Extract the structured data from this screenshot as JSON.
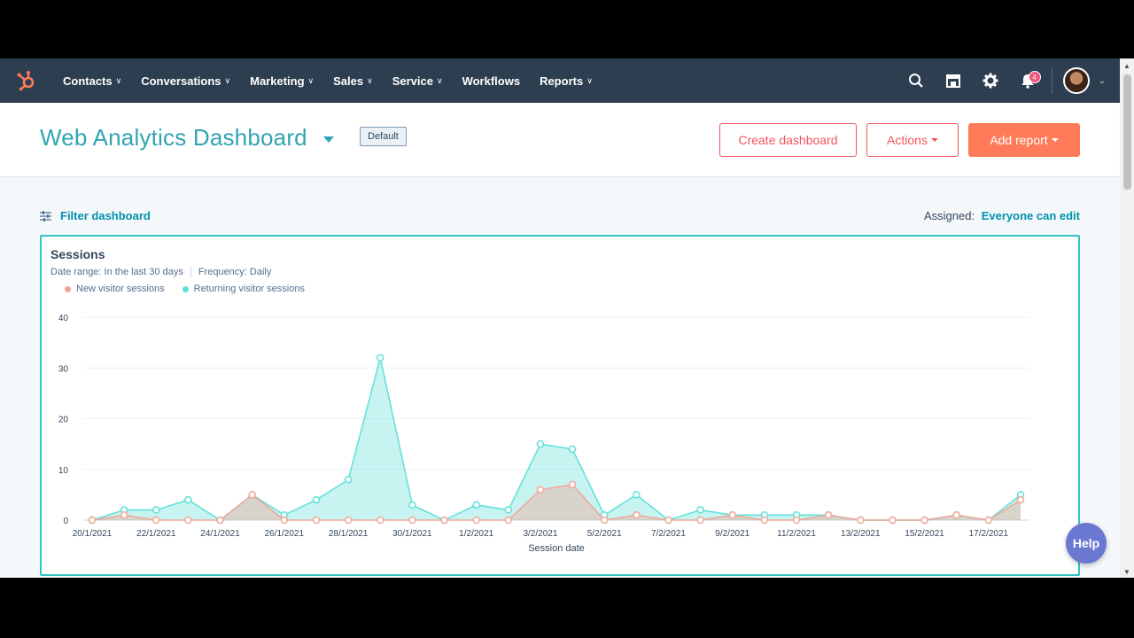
{
  "nav": {
    "items": [
      {
        "label": "Contacts",
        "dropdown": true
      },
      {
        "label": "Conversations",
        "dropdown": true
      },
      {
        "label": "Marketing",
        "dropdown": true
      },
      {
        "label": "Sales",
        "dropdown": true
      },
      {
        "label": "Service",
        "dropdown": true
      },
      {
        "label": "Workflows",
        "dropdown": false
      },
      {
        "label": "Reports",
        "dropdown": true
      }
    ],
    "notification_count": "4",
    "icons": [
      "sprocket-logo-icon",
      "search-icon",
      "marketplace-icon",
      "gear-icon",
      "bell-icon"
    ]
  },
  "header": {
    "title": "Web Analytics Dashboard",
    "badge": "Default",
    "create_label": "Create dashboard",
    "actions_label": "Actions",
    "add_label": "Add report"
  },
  "filter": {
    "label": "Filter dashboard",
    "assigned_label": "Assigned:",
    "assigned_value": "Everyone can edit"
  },
  "card": {
    "title": "Sessions",
    "date_range": "Date range:  In the last 30 days",
    "frequency": "Frequency:  Daily"
  },
  "help_label": "Help",
  "colors": {
    "accent": "#33a3b3",
    "new_visitor": "#f2a597",
    "returning_visitor": "#5ee0d8",
    "nav_bg": "#2d3e50",
    "primary_button": "#ff7a59"
  },
  "chart_data": {
    "type": "area",
    "title": "Sessions",
    "xlabel": "Session date",
    "ylabel": "",
    "ylim": [
      0,
      40
    ],
    "yticks": [
      0,
      10,
      20,
      30,
      40
    ],
    "grid": true,
    "legend_position": "top-left",
    "x": [
      "20/1/2021",
      "21/1/2021",
      "22/1/2021",
      "23/1/2021",
      "24/1/2021",
      "25/1/2021",
      "26/1/2021",
      "27/1/2021",
      "28/1/2021",
      "29/1/2021",
      "30/1/2021",
      "31/1/2021",
      "1/2/2021",
      "2/2/2021",
      "3/2/2021",
      "4/2/2021",
      "5/2/2021",
      "6/2/2021",
      "7/2/2021",
      "8/2/2021",
      "9/2/2021",
      "10/2/2021",
      "11/2/2021",
      "12/2/2021",
      "13/2/2021",
      "14/2/2021",
      "15/2/2021",
      "16/2/2021",
      "17/2/2021",
      "18/2/2021"
    ],
    "xtick_labels": [
      "20/1/2021",
      "22/1/2021",
      "24/1/2021",
      "26/1/2021",
      "28/1/2021",
      "30/1/2021",
      "1/2/2021",
      "3/2/2021",
      "5/2/2021",
      "7/2/2021",
      "9/2/2021",
      "11/2/2021",
      "13/2/2021",
      "15/2/2021",
      "17/2/2021"
    ],
    "series": [
      {
        "name": "New visitor sessions",
        "color": "#f2a597",
        "values": [
          0,
          1,
          0,
          0,
          0,
          5,
          0,
          0,
          0,
          0,
          0,
          0,
          0,
          0,
          6,
          7,
          0,
          1,
          0,
          0,
          1,
          0,
          0,
          1,
          0,
          0,
          0,
          1,
          0,
          4
        ]
      },
      {
        "name": "Returning visitor sessions",
        "color": "#5ee0d8",
        "values": [
          0,
          2,
          2,
          4,
          0,
          5,
          1,
          4,
          8,
          32,
          3,
          0,
          3,
          2,
          15,
          14,
          1,
          5,
          0,
          2,
          1,
          1,
          1,
          1,
          0,
          0,
          0,
          1,
          0,
          5
        ]
      }
    ]
  }
}
